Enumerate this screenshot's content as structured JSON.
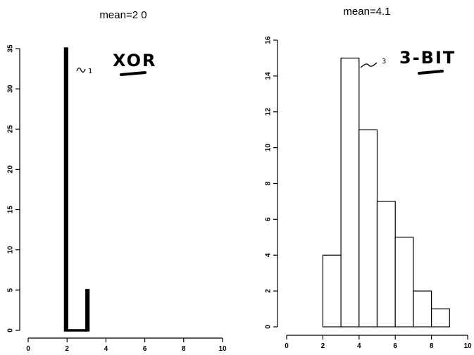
{
  "chart_data": [
    {
      "type": "bar",
      "title": "mean=2 0",
      "xlim": [
        0,
        10
      ],
      "ylim": [
        0,
        35
      ],
      "xticks": [
        "0",
        "2",
        "4",
        "6",
        "8",
        "10"
      ],
      "yticks": [
        "0",
        "5",
        "10",
        "15",
        "20",
        "25",
        "30",
        "35"
      ],
      "bins": [
        {
          "x0": 1.9,
          "x1": 2.0,
          "value": 35
        },
        {
          "x0": 2.0,
          "x1": 3.0,
          "value": 0
        },
        {
          "x0": 3.0,
          "x1": 3.1,
          "value": 5
        }
      ],
      "annotations": [
        "~1",
        "XOR"
      ]
    },
    {
      "type": "bar",
      "title": "mean=4.1",
      "xlim": [
        0,
        10
      ],
      "ylim": [
        0,
        16
      ],
      "xticks": [
        "0",
        "2",
        "4",
        "6",
        "8",
        "10"
      ],
      "yticks": [
        "0",
        "2",
        "4",
        "6",
        "8",
        "10",
        "12",
        "14",
        "16"
      ],
      "bins": [
        {
          "x0": 2,
          "x1": 3,
          "value": 4
        },
        {
          "x0": 3,
          "x1": 4,
          "value": 15
        },
        {
          "x0": 4,
          "x1": 5,
          "value": 11
        },
        {
          "x0": 5,
          "x1": 6,
          "value": 7
        },
        {
          "x0": 6,
          "x1": 7,
          "value": 5
        },
        {
          "x0": 7,
          "x1": 8,
          "value": 2
        },
        {
          "x0": 8,
          "x1": 9,
          "value": 1
        }
      ],
      "annotations": [
        "~3",
        "3-BIT"
      ]
    }
  ]
}
